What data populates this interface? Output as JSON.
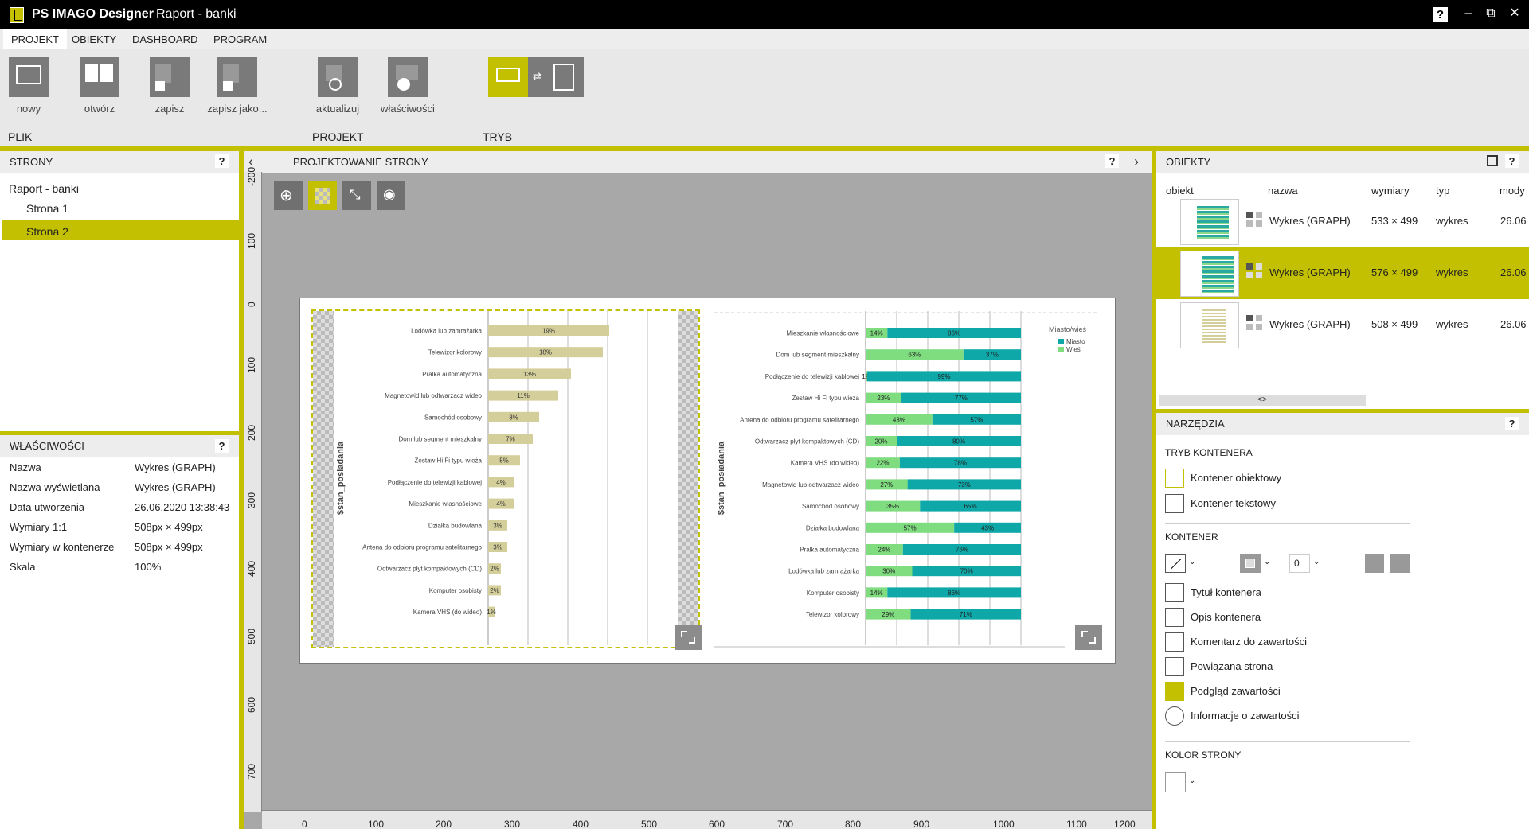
{
  "titlebar": {
    "app_name": "PS IMAGO Designer",
    "doc_title": "Raport - banki",
    "help": "?",
    "minimize": "–",
    "restore": "⧉",
    "close": "✕"
  },
  "menu_tabs": [
    "PROJEKT",
    "OBIEKTY",
    "DASHBOARD",
    "PROGRAM"
  ],
  "ribbon": {
    "buttons": [
      "nowy",
      "otwórz",
      "zapisz",
      "zapisz jako...",
      "aktualizuj",
      "właściwości"
    ],
    "groups": [
      "PLIK",
      "PROJEKT",
      "TRYB"
    ]
  },
  "pages_panel": {
    "title": "STRONY",
    "help": "?",
    "root": "Raport - banki",
    "pages": [
      "Strona 1",
      "Strona 2"
    ],
    "selected": "Strona 2"
  },
  "properties_panel": {
    "title": "WŁAŚCIWOŚCI",
    "help": "?",
    "rows": [
      {
        "label": "Nazwa",
        "value": "Wykres (GRAPH)"
      },
      {
        "label": "Nazwa wyświetlana",
        "value": "Wykres (GRAPH)"
      },
      {
        "label": "Data utworzenia",
        "value": "26.06.2020 13:38:43"
      },
      {
        "label": "Wymiary 1:1",
        "value": "508px × 499px"
      },
      {
        "label": "Wymiary w kontenerze",
        "value": "508px × 499px"
      },
      {
        "label": "Skala",
        "value": "100%"
      }
    ]
  },
  "design_panel": {
    "title": "PROJEKTOWANIE STRONY",
    "help": "?",
    "nav_left": "‹",
    "nav_right": "›",
    "ruler_v": [
      "-200",
      "100",
      "0",
      "100",
      "200",
      "300",
      "400",
      "500",
      "600",
      "700"
    ],
    "ruler_h": [
      "0",
      "100",
      "200",
      "300",
      "400",
      "500",
      "600",
      "700",
      "800",
      "900",
      "1000",
      "1100",
      "1200"
    ]
  },
  "objects_panel": {
    "title": "OBIEKTY",
    "help": "?",
    "columns": [
      "obiekt",
      "nazwa",
      "wymiary",
      "typ",
      "mody"
    ],
    "rows": [
      {
        "name": "Wykres (GRAPH)",
        "dims": "533 × 499",
        "type": "wykres",
        "mod": "26.06"
      },
      {
        "name": "Wykres (GRAPH)",
        "dims": "576 × 499",
        "type": "wykres",
        "mod": "26.06"
      },
      {
        "name": "Wykres (GRAPH)",
        "dims": "508 × 499",
        "type": "wykres",
        "mod": "26.06"
      }
    ],
    "selected_index": 1,
    "scroll_label": "<>"
  },
  "tools_panel": {
    "title": "NARZĘDZIA",
    "help": "?",
    "container_mode_title": "TRYB KONTENERA",
    "container_modes": [
      "Kontener obiektowy",
      "Kontener tekstowy"
    ],
    "container_title": "KONTENER",
    "border_width": "0",
    "container_items": [
      "Tytuł kontenera",
      "Opis kontenera",
      "Komentarz do zawartości",
      "Powiązana strona",
      "Podgląd zawartości",
      "Informacje o zawartości"
    ],
    "page_color_title": "KOLOR STRONY"
  },
  "chart_data": [
    {
      "type": "bar",
      "ylabel": "$stan_posiadania",
      "categories": [
        "Lodówka lub zamrażarka",
        "Telewizor kolorowy",
        "Pralka automatyczna",
        "Magnetowid lub odtwarzacz wideo",
        "Samochód osobowy",
        "Dom lub segment mieszkalny",
        "Zestaw Hi Fi typu wieża",
        "Podłączenie do telewizji kablowej",
        "Mieszkanie własnościowe",
        "Działka budowlana",
        "Antena do odbioru programu satelitarnego",
        "Odtwarzacz płyt kompaktowych (CD)",
        "Komputer osobisty",
        "Kamera VHS (do wideo)"
      ],
      "values": [
        19,
        18,
        13,
        11,
        8,
        7,
        5,
        4,
        4,
        3,
        3,
        2,
        2,
        1
      ],
      "labels": [
        "19%",
        "18%",
        "13%",
        "11%",
        "8%",
        "7%",
        "5%",
        "4%",
        "4%",
        "3%",
        "3%",
        "2%",
        "2%",
        "1%"
      ],
      "xlim": [
        0,
        25
      ],
      "color": "#d4cf9a"
    },
    {
      "type": "bar",
      "stacked": true,
      "ylabel": "$stan_posiadania",
      "legend_title": "Miasto/wieś",
      "legend_position": "top-right",
      "categories": [
        "Mieszkanie własnościowe",
        "Dom lub segment mieszkalny",
        "Podłączenie do telewizji kablowej",
        "Zestaw Hi Fi typu wieża",
        "Antena do odbioru programu satelitarnego",
        "Odtwarzacz płyt kompaktowych (CD)",
        "Kamera VHS (do wideo)",
        "Magnetowid lub odtwarzacz wideo",
        "Samochód osobowy",
        "Działka budowlana",
        "Pralka automatyczna",
        "Lodówka lub zamrażarka",
        "Komputer osobisty",
        "Telewizor kolorowy"
      ],
      "series": [
        {
          "name": "Wieś",
          "color": "#7fdc7f",
          "values": [
            14,
            63,
            1,
            23,
            43,
            20,
            22,
            27,
            35,
            57,
            24,
            30,
            14,
            29
          ]
        },
        {
          "name": "Miasto",
          "color": "#0fa8a8",
          "values": [
            86,
            37,
            99,
            77,
            57,
            80,
            78,
            73,
            65,
            43,
            76,
            70,
            86,
            71
          ]
        }
      ],
      "legend": [
        "Miasto",
        "Wieś"
      ],
      "xlim": [
        0,
        100
      ]
    }
  ]
}
